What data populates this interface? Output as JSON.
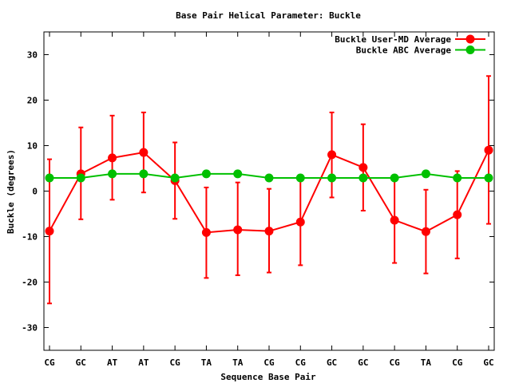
{
  "chart_data": {
    "type": "line",
    "title": "Base Pair Helical Parameter: Buckle",
    "xlabel": "Sequence Base Pair",
    "ylabel": "Buckle (degrees)",
    "categories": [
      "CG",
      "GC",
      "AT",
      "AT",
      "CG",
      "TA",
      "TA",
      "CG",
      "CG",
      "GC",
      "GC",
      "CG",
      "TA",
      "CG",
      "GC"
    ],
    "ylim": [
      -35,
      35
    ],
    "yticks": [
      -30,
      -20,
      -10,
      0,
      10,
      20,
      30
    ],
    "grid": false,
    "legend_position": "top-right",
    "series": [
      {
        "name": "Buckle User-MD Average",
        "color": "#ff0000",
        "values": [
          -8.8,
          3.8,
          7.3,
          8.5,
          2.3,
          -9.1,
          -8.5,
          -8.8,
          -6.8,
          8.0,
          5.2,
          -6.4,
          -8.9,
          -5.2,
          9.0
        ],
        "error_low": [
          -24.7,
          -6.2,
          -1.9,
          -0.3,
          -6.1,
          -19.1,
          -18.5,
          -17.9,
          -16.3,
          -1.4,
          -4.3,
          -15.8,
          -18.1,
          -14.8,
          -7.2
        ],
        "error_high": [
          7.0,
          14.0,
          16.6,
          17.3,
          10.7,
          0.8,
          1.9,
          0.5,
          2.5,
          17.3,
          14.7,
          3.0,
          0.3,
          4.4,
          25.3
        ]
      },
      {
        "name": "Buckle ABC Average",
        "color": "#00c000",
        "values": [
          2.9,
          2.9,
          3.8,
          3.8,
          2.9,
          3.8,
          3.8,
          2.9,
          2.9,
          2.9,
          2.9,
          2.9,
          3.8,
          2.9,
          2.9
        ]
      }
    ]
  }
}
